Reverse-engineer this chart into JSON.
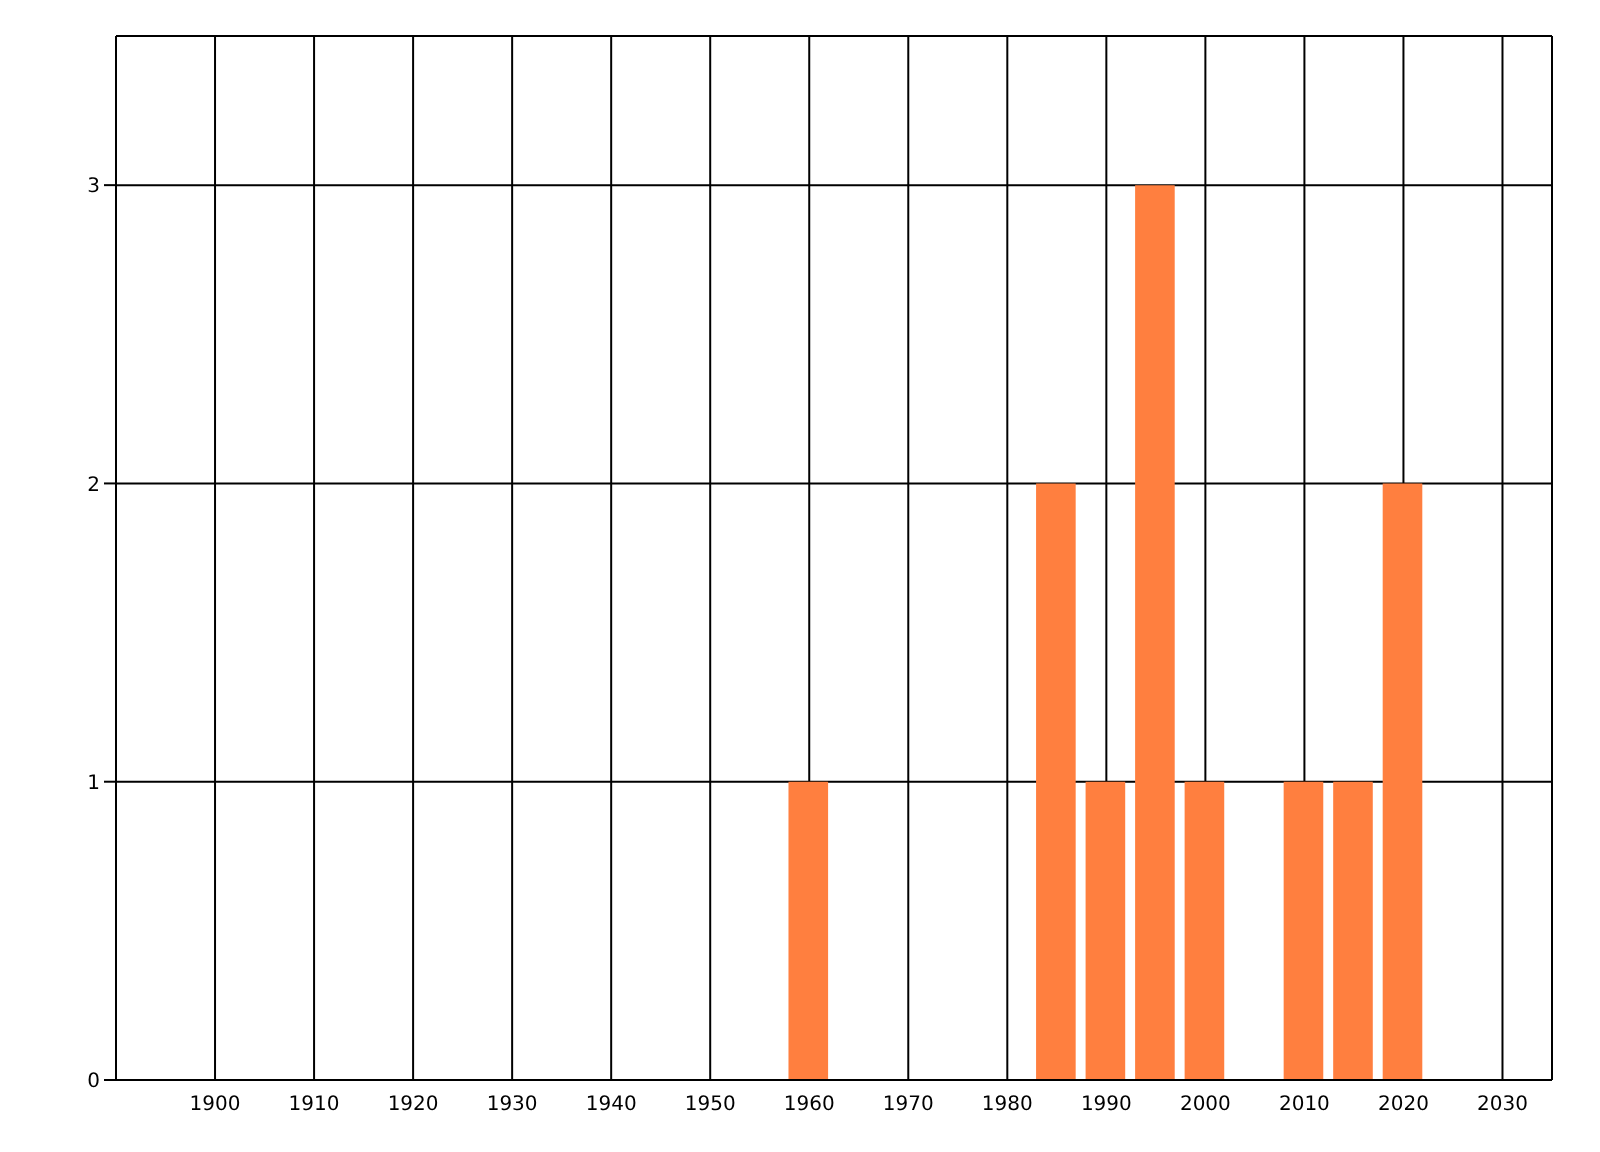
{
  "chart_data": {
    "type": "bar",
    "x": [
      1960,
      1985,
      1990,
      1995,
      2000,
      2010,
      2015,
      2020
    ],
    "values": [
      1,
      2,
      1,
      3,
      1,
      1,
      1,
      2
    ],
    "color": "#ff7f3f",
    "xlim": [
      1890,
      2035
    ],
    "xticks": [
      1900,
      1910,
      1920,
      1930,
      1940,
      1950,
      1960,
      1970,
      1980,
      1990,
      2000,
      2010,
      2020,
      2030
    ],
    "ylim": [
      0,
      3.5
    ],
    "yticks": [
      0,
      1,
      2,
      3
    ],
    "grid": true,
    "legend": false
  }
}
